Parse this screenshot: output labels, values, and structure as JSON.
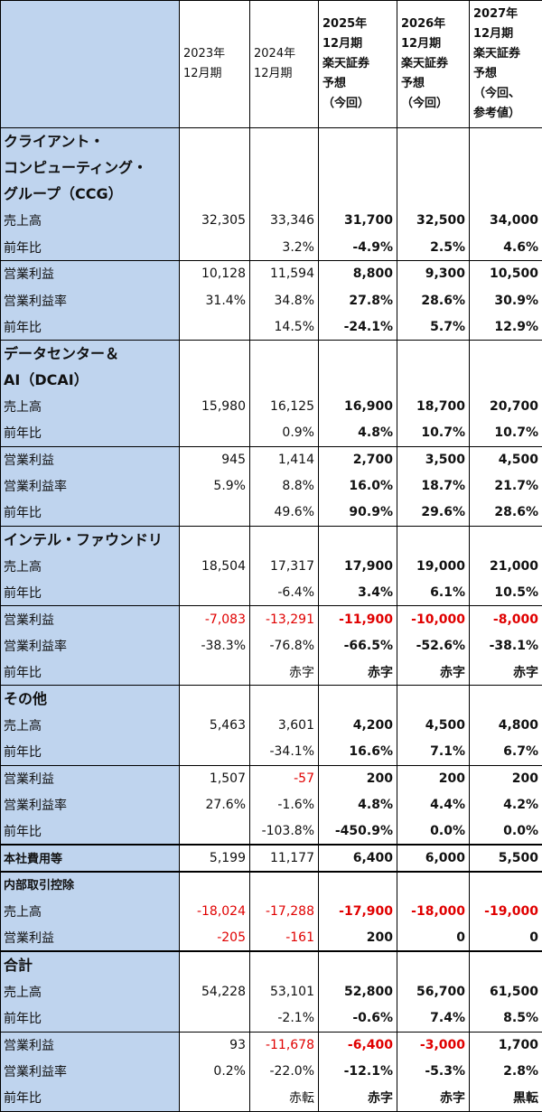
{
  "header": {
    "c1": [
      "2023年",
      "12月期"
    ],
    "c2": [
      "2024年",
      "12月期"
    ],
    "c3": [
      "2025年",
      "12月期",
      "楽天証券",
      "予想",
      "（今回）"
    ],
    "c4": [
      "2026年",
      "12月期",
      "楽天証券",
      "予想",
      "（今回）"
    ],
    "c5": [
      "2027年",
      "12月期",
      "楽天証券",
      "予想",
      "（今回、",
      "参考値）"
    ]
  },
  "rows": [
    {
      "type": "sec",
      "label": [
        "クライアント・",
        "コンピューティング・",
        "グループ（CCG）"
      ]
    },
    {
      "label": "売上高",
      "v": [
        "32,305",
        "33,346",
        "31,700",
        "32,500",
        "34,000"
      ]
    },
    {
      "label": "前年比",
      "v": [
        "",
        "3.2%",
        "-4.9%",
        "2.5%",
        "4.6%"
      ]
    },
    {
      "label": "営業利益",
      "top": true,
      "v": [
        "10,128",
        "11,594",
        "8,800",
        "9,300",
        "10,500"
      ]
    },
    {
      "label": "営業利益率",
      "v": [
        "31.4%",
        "34.8%",
        "27.8%",
        "28.6%",
        "30.9%"
      ]
    },
    {
      "label": "前年比",
      "v": [
        "",
        "14.5%",
        "-24.1%",
        "5.7%",
        "12.9%"
      ]
    },
    {
      "type": "sec",
      "top": true,
      "label": [
        "データセンター＆",
        "AI（DCAI）"
      ]
    },
    {
      "label": "売上高",
      "v": [
        "15,980",
        "16,125",
        "16,900",
        "18,700",
        "20,700"
      ]
    },
    {
      "label": "前年比",
      "v": [
        "",
        "0.9%",
        "4.8%",
        "10.7%",
        "10.7%"
      ]
    },
    {
      "label": "営業利益",
      "top": true,
      "v": [
        "945",
        "1,414",
        "2,700",
        "3,500",
        "4,500"
      ]
    },
    {
      "label": "営業利益率",
      "v": [
        "5.9%",
        "8.8%",
        "16.0%",
        "18.7%",
        "21.7%"
      ]
    },
    {
      "label": "前年比",
      "v": [
        "",
        "49.6%",
        "90.9%",
        "29.6%",
        "28.6%"
      ]
    },
    {
      "type": "sec",
      "top": true,
      "label": [
        "インテル・ファウンドリ"
      ]
    },
    {
      "label": "売上高",
      "v": [
        "18,504",
        "17,317",
        "17,900",
        "19,000",
        "21,000"
      ]
    },
    {
      "label": "前年比",
      "v": [
        "",
        "-6.4%",
        "3.4%",
        "6.1%",
        "10.5%"
      ]
    },
    {
      "label": "営業利益",
      "top": true,
      "red": true,
      "v": [
        "-7,083",
        "-13,291",
        "-11,900",
        "-10,000",
        "-8,000"
      ]
    },
    {
      "label": "営業利益率",
      "v": [
        "-38.3%",
        "-76.8%",
        "-66.5%",
        "-52.6%",
        "-38.1%"
      ]
    },
    {
      "label": "前年比",
      "v": [
        "",
        "赤字",
        "赤字",
        "赤字",
        "赤字"
      ]
    },
    {
      "type": "sec",
      "top": true,
      "label": [
        "その他"
      ]
    },
    {
      "label": "売上高",
      "v": [
        "5,463",
        "3,601",
        "4,200",
        "4,500",
        "4,800"
      ]
    },
    {
      "label": "前年比",
      "v": [
        "",
        "-34.1%",
        "16.6%",
        "7.1%",
        "6.7%"
      ]
    },
    {
      "label": "営業利益",
      "top": true,
      "redcols": [
        1
      ],
      "v": [
        "1,507",
        "-57",
        "200",
        "200",
        "200"
      ]
    },
    {
      "label": "営業利益率",
      "v": [
        "27.6%",
        "-1.6%",
        "4.8%",
        "4.4%",
        "4.2%"
      ]
    },
    {
      "label": "前年比",
      "v": [
        "",
        "-103.8%",
        "-450.9%",
        "0.0%",
        "0.0%"
      ]
    },
    {
      "type": "secv",
      "thick": true,
      "label": "本社費用等",
      "v": [
        "5,199",
        "11,177",
        "6,400",
        "6,000",
        "5,500"
      ]
    },
    {
      "type": "sec",
      "small": true,
      "thick": true,
      "label": [
        "内部取引控除"
      ]
    },
    {
      "label": "売上高",
      "red": true,
      "v": [
        "-18,024",
        "-17,288",
        "-17,900",
        "-18,000",
        "-19,000"
      ]
    },
    {
      "label": "営業利益",
      "redcols": [
        0,
        1
      ],
      "v": [
        "-205",
        "-161",
        "200",
        "0",
        "0"
      ]
    },
    {
      "type": "sec",
      "thick": true,
      "label": [
        "合計"
      ]
    },
    {
      "label": "売上高",
      "v": [
        "54,228",
        "53,101",
        "52,800",
        "56,700",
        "61,500"
      ]
    },
    {
      "label": "前年比",
      "v": [
        "",
        "-2.1%",
        "-0.6%",
        "7.4%",
        "8.5%"
      ]
    },
    {
      "label": "営業利益",
      "top": true,
      "redcols": [
        1,
        2,
        3
      ],
      "v": [
        "93",
        "-11,678",
        "-6,400",
        "-3,000",
        "1,700"
      ]
    },
    {
      "label": "営業利益率",
      "v": [
        "0.2%",
        "-22.0%",
        "-12.1%",
        "-5.3%",
        "2.8%"
      ]
    },
    {
      "label": "前年比",
      "last": true,
      "v": [
        "",
        "赤転",
        "赤字",
        "赤字",
        "黒転"
      ]
    }
  ]
}
